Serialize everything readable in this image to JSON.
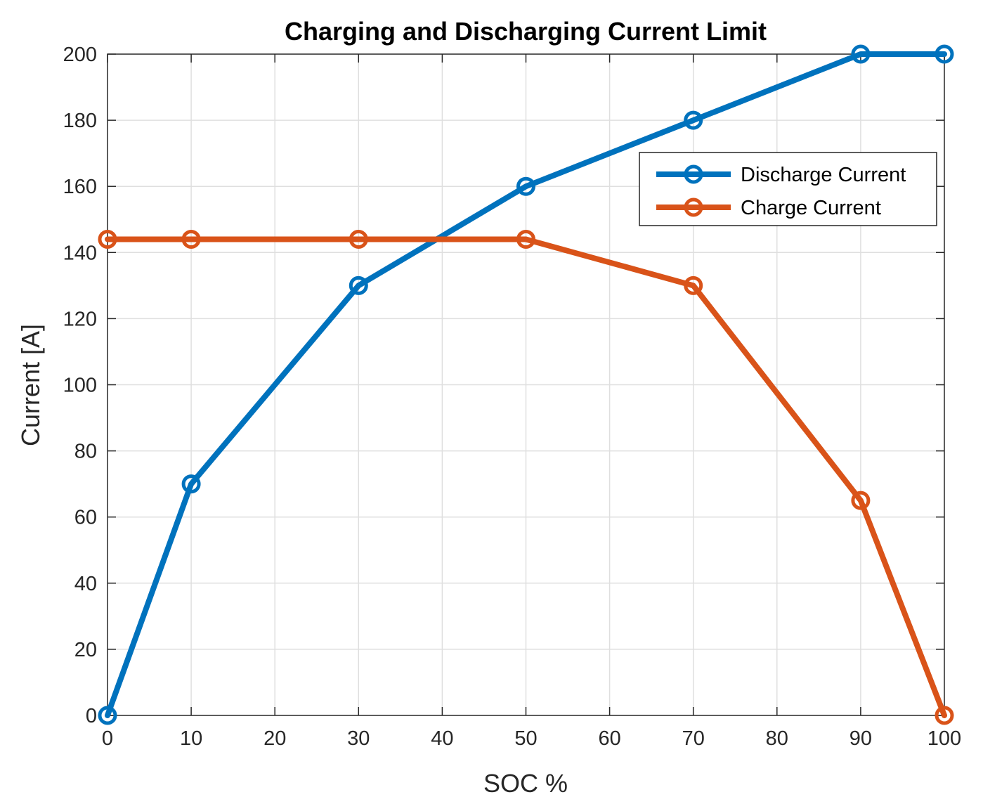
{
  "chart_data": {
    "type": "line",
    "title": "Charging and Discharging Current Limit",
    "xlabel": "SOC %",
    "ylabel": "Current [A]",
    "xlim": [
      0,
      100
    ],
    "ylim": [
      0,
      200
    ],
    "xticks": [
      0,
      10,
      20,
      30,
      40,
      50,
      60,
      70,
      80,
      90,
      100
    ],
    "yticks": [
      0,
      20,
      40,
      60,
      80,
      100,
      120,
      140,
      160,
      180,
      200
    ],
    "grid": true,
    "legend_position": "top-right",
    "series": [
      {
        "name": "Discharge Current",
        "color": "#0072BD",
        "marker": "circle",
        "x": [
          0,
          10,
          30,
          50,
          70,
          90,
          100
        ],
        "y": [
          0,
          70,
          130,
          160,
          180,
          200,
          200
        ]
      },
      {
        "name": "Charge Current",
        "color": "#D95319",
        "marker": "circle",
        "x": [
          0,
          10,
          30,
          50,
          70,
          90,
          100
        ],
        "y": [
          144,
          144,
          144,
          144,
          130,
          65,
          0
        ]
      }
    ]
  }
}
